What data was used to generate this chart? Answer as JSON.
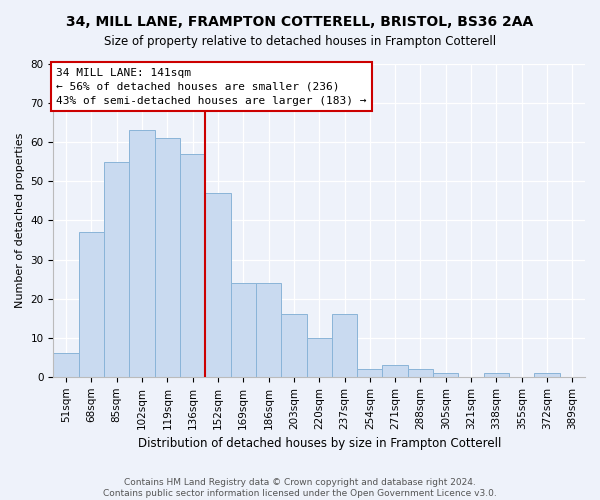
{
  "title": "34, MILL LANE, FRAMPTON COTTERELL, BRISTOL, BS36 2AA",
  "subtitle": "Size of property relative to detached houses in Frampton Cotterell",
  "xlabel": "Distribution of detached houses by size in Frampton Cotterell",
  "ylabel": "Number of detached properties",
  "bin_labels": [
    "51sqm",
    "68sqm",
    "85sqm",
    "102sqm",
    "119sqm",
    "136sqm",
    "152sqm",
    "169sqm",
    "186sqm",
    "203sqm",
    "220sqm",
    "237sqm",
    "254sqm",
    "271sqm",
    "288sqm",
    "305sqm",
    "321sqm",
    "338sqm",
    "355sqm",
    "372sqm",
    "389sqm"
  ],
  "bar_values": [
    6,
    37,
    55,
    63,
    61,
    57,
    47,
    24,
    24,
    16,
    10,
    16,
    2,
    3,
    2,
    1,
    0,
    1,
    0,
    1,
    0
  ],
  "bar_color": "#c9daf0",
  "bar_edge_color": "#8ab4d8",
  "vline_color": "#cc0000",
  "annotation_title": "34 MILL LANE: 141sqm",
  "annotation_line1": "← 56% of detached houses are smaller (236)",
  "annotation_line2": "43% of semi-detached houses are larger (183) →",
  "annotation_box_color": "#ffffff",
  "annotation_box_edge_color": "#cc0000",
  "ylim": [
    0,
    80
  ],
  "yticks": [
    0,
    10,
    20,
    30,
    40,
    50,
    60,
    70,
    80
  ],
  "footer_line1": "Contains HM Land Registry data © Crown copyright and database right 2024.",
  "footer_line2": "Contains public sector information licensed under the Open Government Licence v3.0.",
  "bg_color": "#eef2fa",
  "plot_bg_color": "#eef2fa",
  "grid_color": "#ffffff",
  "title_fontsize": 10,
  "subtitle_fontsize": 8.5,
  "ylabel_fontsize": 8,
  "xlabel_fontsize": 8.5,
  "tick_fontsize": 7.5,
  "footer_fontsize": 6.5,
  "annot_fontsize": 8
}
